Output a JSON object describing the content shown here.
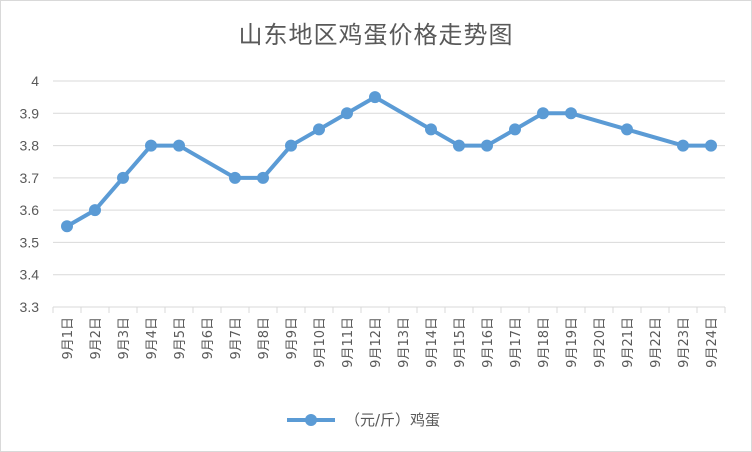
{
  "chart_data": {
    "type": "line",
    "title": "山东地区鸡蛋价格走势图",
    "categories": [
      "9月1日",
      "9月2日",
      "9月3日",
      "9月4日",
      "9月5日",
      "9月6日",
      "9月7日",
      "9月8日",
      "9月9日",
      "9月10日",
      "9月11日",
      "9月12日",
      "9月13日",
      "9月14日",
      "9月15日",
      "9月16日",
      "9月17日",
      "9月18日",
      "9月19日",
      "9月20日",
      "9月21日",
      "9月22日",
      "9月23日",
      "9月24日"
    ],
    "series": [
      {
        "name": "（元/斤）鸡蛋",
        "color": "#5B9BD5",
        "values": [
          3.55,
          3.6,
          3.7,
          3.8,
          3.8,
          null,
          3.7,
          3.7,
          3.8,
          3.85,
          3.9,
          3.95,
          null,
          3.85,
          3.8,
          3.8,
          3.85,
          3.9,
          3.9,
          null,
          3.85,
          null,
          3.8,
          3.8
        ]
      }
    ],
    "ylim": [
      3.3,
      4.0
    ],
    "yticks": [
      "3.3",
      "3.4",
      "3.5",
      "3.6",
      "3.7",
      "3.8",
      "3.9",
      "4"
    ],
    "grid": true,
    "gaps": "connected",
    "legend_position": "bottom"
  }
}
